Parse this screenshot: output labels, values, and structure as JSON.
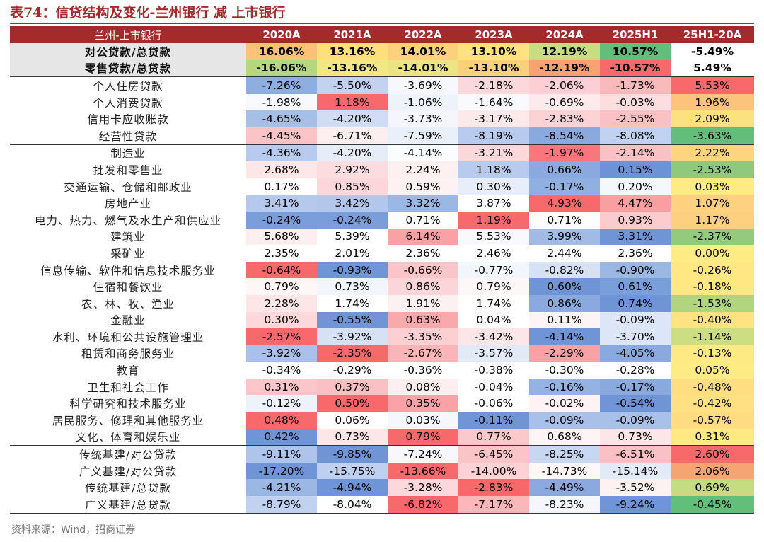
{
  "title": "表74：信贷结构及变化-兰州银行 减 上市银行",
  "source": "资料来源：Wind，招商证券",
  "table": {
    "header": [
      "兰州-上市银行",
      "2020A",
      "2021A",
      "2022A",
      "2023A",
      "2024A",
      "2025H1",
      "25H1-20A"
    ],
    "rows": [
      {
        "label": "对公贷款/总贷款",
        "values": [
          "16.06%",
          "13.16%",
          "14.01%",
          "13.10%",
          "12.19%",
          "10.57%",
          "-5.49%"
        ],
        "colors": [
          "#fbc178",
          "#fde07c",
          "#fcd17d",
          "#fde27f",
          "#c8dd82",
          "#63be7b",
          "#ffffff"
        ]
      },
      {
        "label": "零售贷款/总贷款",
        "values": [
          "-16.06%",
          "-13.16%",
          "-14.01%",
          "-13.10%",
          "-12.19%",
          "-10.57%",
          "5.49%"
        ],
        "colors": [
          "#b6d77f",
          "#f2e783",
          "#ebe482",
          "#fbd07c",
          "#f8a271",
          "#f8696b",
          "#ffffff"
        ]
      },
      {
        "label": "个人住房贷款",
        "values": [
          "-7.26%",
          "-5.50%",
          "-3.69%",
          "-2.18%",
          "-2.06%",
          "-1.73%",
          "5.53%"
        ],
        "colors": [
          "#8eaee0",
          "#c2d2f0",
          "#f6f8fc",
          "#fcd8db",
          "#fbcfd3",
          "#f9babe",
          "#f8696b"
        ]
      },
      {
        "label": "个人消费贷款",
        "values": [
          "-1.98%",
          "1.18%",
          "-1.06%",
          "-1.64%",
          "-0.69%",
          "-0.03%",
          "1.96%"
        ],
        "colors": [
          "#f8f9fd",
          "#f8696b",
          "#eef2fb",
          "#f9fafe",
          "#fdeaec",
          "#fcdde0",
          "#fcc47b"
        ]
      },
      {
        "label": "信用卡应收账款",
        "values": [
          "-4.65%",
          "-4.20%",
          "-3.73%",
          "-3.17%",
          "-2.83%",
          "-2.55%",
          "2.09%"
        ],
        "colors": [
          "#a5bfe7",
          "#cfdcf3",
          "#f4f6fb",
          "#fde8ea",
          "#fcd2d5",
          "#fbc0c3",
          "#fde07f"
        ]
      },
      {
        "label": "经营性贷款",
        "values": [
          "-4.45%",
          "-6.71%",
          "-7.59%",
          "-8.19%",
          "-8.54%",
          "-8.08%",
          "-3.63%"
        ],
        "colors": [
          "#fac4c7",
          "#fdeef0",
          "#eaf0fa",
          "#b8cbee",
          "#8aaadf",
          "#c1d2f0",
          "#63be7b"
        ]
      },
      {
        "label": "制造业",
        "values": [
          "-4.36%",
          "-4.20%",
          "-4.14%",
          "-3.21%",
          "-1.97%",
          "-2.14%",
          "2.22%"
        ],
        "colors": [
          "#b8cbee",
          "#e6ecf8",
          "#fbfcfe",
          "#fcd7db",
          "#f8777a",
          "#fac1c4",
          "#fcd57e"
        ]
      },
      {
        "label": "批发和零售业",
        "values": [
          "2.68%",
          "2.92%",
          "2.24%",
          "1.18%",
          "0.66%",
          "0.15%",
          "-2.53%"
        ],
        "colors": [
          "#fde6e8",
          "#fbdde0",
          "#fdf0f1",
          "#b8cbee",
          "#8aaadf",
          "#6d93d6",
          "#90c97d"
        ]
      },
      {
        "label": "交通运输、仓储和邮政业",
        "values": [
          "0.17%",
          "0.85%",
          "0.59%",
          "0.30%",
          "-0.17%",
          "0.20%",
          "0.03%"
        ],
        "colors": [
          "#ffffff",
          "#fcd6d9",
          "#fef1f2",
          "#e8eef9",
          "#8fb0e1",
          "#f4f7fc",
          "#ffeb84"
        ]
      },
      {
        "label": "房地产业",
        "values": [
          "3.41%",
          "3.42%",
          "3.32%",
          "3.87%",
          "4.93%",
          "4.47%",
          "1.07%"
        ],
        "colors": [
          "#b5c9ec",
          "#b3c7ec",
          "#9bb8e4",
          "#ffffff",
          "#f8696b",
          "#f99ea1",
          "#fdd17f"
        ]
      },
      {
        "label": "电力、热力、燃气及水生产和供应业",
        "values": [
          "-0.24%",
          "-0.24%",
          "0.71%",
          "1.19%",
          "0.71%",
          "0.93%",
          "1.17%"
        ],
        "colors": [
          "#7a9ed9",
          "#7a9ed9",
          "#fdfdfe",
          "#f8696b",
          "#fdfdfe",
          "#fbcbce",
          "#fdd07f"
        ]
      },
      {
        "label": "建筑业",
        "values": [
          "5.68%",
          "5.39%",
          "6.14%",
          "5.53%",
          "3.99%",
          "3.31%",
          "-2.37%"
        ],
        "colors": [
          "#fdeff0",
          "#ffffff",
          "#f9a1a4",
          "#f8f8fd",
          "#a1bbe5",
          "#7095d6",
          "#94ca7d"
        ]
      },
      {
        "label": "采矿业",
        "values": [
          "2.35%",
          "2.01%",
          "2.36%",
          "2.46%",
          "2.44%",
          "2.36%",
          "0.00%"
        ],
        "colors": [
          "#ffffff",
          "#ffffff",
          "#ffffff",
          "#ffffff",
          "#ffffff",
          "#ffffff",
          "#ffeb84"
        ]
      },
      {
        "label": "信息传输、软件和信息技术服务业",
        "values": [
          "-0.64%",
          "-0.93%",
          "-0.66%",
          "-0.77%",
          "-0.82%",
          "-0.90%",
          "-0.26%"
        ],
        "colors": [
          "#f8696b",
          "#7095d6",
          "#fac5c8",
          "#f2f5fc",
          "#d6e1f4",
          "#9bb8e4",
          "#ffe783"
        ]
      },
      {
        "label": "住宿和餐饮业",
        "values": [
          "0.79%",
          "0.73%",
          "0.86%",
          "0.79%",
          "0.60%",
          "0.61%",
          "-0.18%"
        ],
        "colors": [
          "#fef7f8",
          "#f2f5fc",
          "#fcd5d8",
          "#fef7f8",
          "#7095d6",
          "#7a9ed9",
          "#ffe883"
        ]
      },
      {
        "label": "农、林、牧、渔业",
        "values": [
          "2.28%",
          "1.74%",
          "1.91%",
          "1.74%",
          "0.86%",
          "0.74%",
          "-1.53%"
        ],
        "colors": [
          "#fde6e8",
          "#ffffff",
          "#fdf0f1",
          "#ffffff",
          "#8aaadf",
          "#7095d6",
          "#b1d47f"
        ]
      },
      {
        "label": "金融业",
        "values": [
          "0.30%",
          "-0.55%",
          "0.63%",
          "0.04%",
          "0.11%",
          "-0.09%",
          "-0.40%"
        ],
        "colors": [
          "#fdd8db",
          "#7095d6",
          "#f9a9ac",
          "#ffffff",
          "#fef4f5",
          "#dde6f6",
          "#ffe382"
        ]
      },
      {
        "label": "水利、环境和公共设施管理业",
        "values": [
          "-2.57%",
          "-3.92%",
          "-3.35%",
          "-3.42%",
          "-4.14%",
          "-3.70%",
          "-1.14%"
        ],
        "colors": [
          "#f8696b",
          "#d6e1f4",
          "#fcd0d3",
          "#fde6e8",
          "#7095d6",
          "#dde6f6",
          "#cddd81"
        ]
      },
      {
        "label": "租赁和商务服务业",
        "values": [
          "-3.92%",
          "-2.35%",
          "-2.67%",
          "-3.57%",
          "-2.29%",
          "-4.05%",
          "-0.13%"
        ],
        "colors": [
          "#a9c1e8",
          "#f8696b",
          "#fbb4b7",
          "#e2e9f7",
          "#f9a1a4",
          "#8aaadf",
          "#ffe983"
        ]
      },
      {
        "label": "教育",
        "values": [
          "-0.34%",
          "-0.29%",
          "-0.36%",
          "-0.38%",
          "-0.30%",
          "-0.28%",
          "0.05%"
        ],
        "colors": [
          "#ffffff",
          "#ffffff",
          "#ffffff",
          "#ffffff",
          "#ffffff",
          "#ffffff",
          "#ffeb84"
        ]
      },
      {
        "label": "卫生和社会工作",
        "values": [
          "0.31%",
          "0.37%",
          "0.08%",
          "-0.04%",
          "-0.16%",
          "-0.17%",
          "-0.48%"
        ],
        "colors": [
          "#fbc6c9",
          "#fbc0c3",
          "#fdeef0",
          "#ffffff",
          "#95b3e2",
          "#8aaadf",
          "#ffde82"
        ]
      },
      {
        "label": "科学研究和技术服务业",
        "values": [
          "-0.12%",
          "0.50%",
          "0.35%",
          "-0.06%",
          "-0.02%",
          "-0.54%",
          "-0.42%"
        ],
        "colors": [
          "#eef2fb",
          "#f8696b",
          "#faa3a6",
          "#ffffff",
          "#fef2f3",
          "#7095d6",
          "#ffe082"
        ]
      },
      {
        "label": "居民服务、修理和其他服务业",
        "values": [
          "0.48%",
          "0.06%",
          "0.03%",
          "-0.11%",
          "-0.09%",
          "-0.09%",
          "-0.57%"
        ],
        "colors": [
          "#f8696b",
          "#ffffff",
          "#f4f7fc",
          "#7095d6",
          "#a9c1e8",
          "#a9c1e8",
          "#ffdb81"
        ]
      },
      {
        "label": "文化、体育和娱乐业",
        "values": [
          "0.42%",
          "0.73%",
          "0.79%",
          "0.77%",
          "0.68%",
          "0.73%",
          "0.31%"
        ],
        "colors": [
          "#7095d6",
          "#fde6e8",
          "#f8696b",
          "#fbc9cc",
          "#fef4f5",
          "#fde6e8",
          "#ffe983"
        ]
      },
      {
        "label": "传统基建/对公贷款",
        "values": [
          "-9.11%",
          "-9.85%",
          "-7.24%",
          "-6.45%",
          "-8.25%",
          "-6.51%",
          "2.60%"
        ],
        "colors": [
          "#aec4ea",
          "#7095d6",
          "#f6f8fc",
          "#fbc5c8",
          "#c7d6f1",
          "#fbc0c3",
          "#f8696b"
        ]
      },
      {
        "label": "广义基建/对公贷款",
        "values": [
          "-17.20%",
          "-15.75%",
          "-13.66%",
          "-14.00%",
          "-14.73%",
          "-15.14%",
          "2.06%"
        ],
        "colors": [
          "#7095d6",
          "#bfcfef",
          "#f8696b",
          "#fcd2d5",
          "#fef7f8",
          "#e2e9f7",
          "#f8a372"
        ]
      },
      {
        "label": "传统基建/总贷款",
        "values": [
          "-4.21%",
          "-4.94%",
          "-3.28%",
          "-2.83%",
          "-4.49%",
          "-3.52%",
          "0.69%"
        ],
        "colors": [
          "#9bb8e4",
          "#7095d6",
          "#fcd7db",
          "#f8696b",
          "#8aaadf",
          "#fdf1f2",
          "#c5dc81"
        ]
      },
      {
        "label": "广义基建/总贷款",
        "values": [
          "-8.79%",
          "-8.04%",
          "-6.82%",
          "-7.17%",
          "-8.23%",
          "-9.24%",
          "-0.45%"
        ],
        "colors": [
          "#c1d2f0",
          "#ffffff",
          "#f8696b",
          "#fbb7ba",
          "#f5f7fc",
          "#7095d6",
          "#63be7b"
        ]
      }
    ]
  }
}
